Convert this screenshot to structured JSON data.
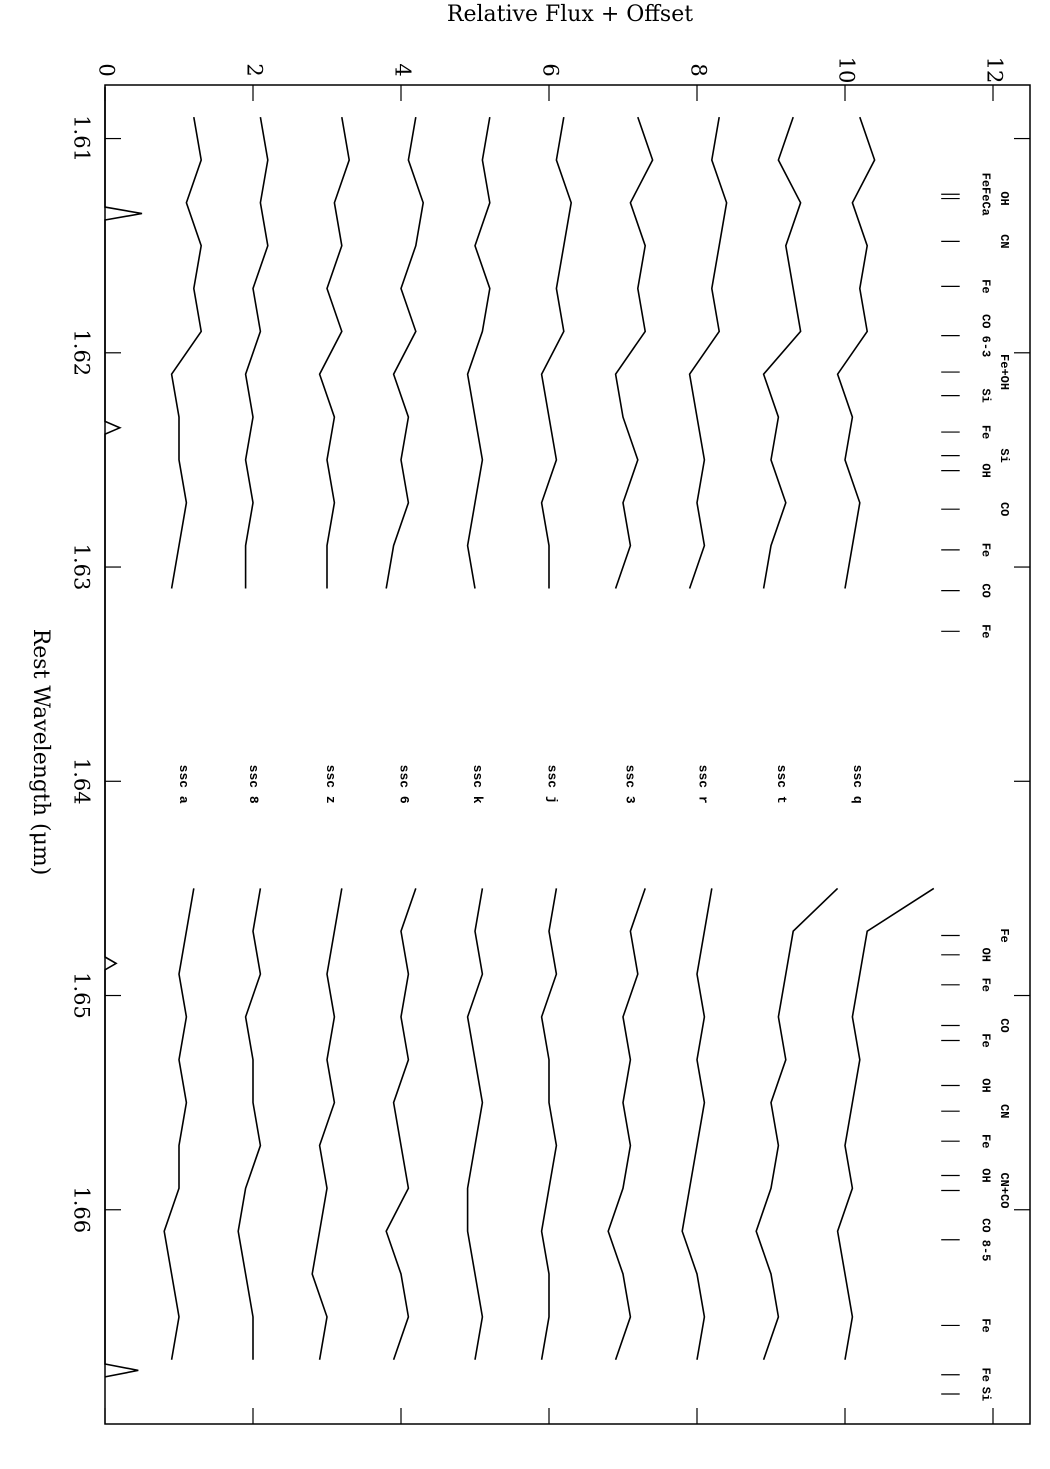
{
  "chart_data": {
    "type": "line",
    "title_top": "Relative Flux + Offset",
    "x_label": "Rest Wavelength (μm)",
    "xlim": [
      1.6075,
      1.67
    ],
    "ylim": [
      0,
      12.5
    ],
    "xticks": [
      1.61,
      1.62,
      1.63,
      1.64,
      1.65,
      1.66
    ],
    "yticks": [
      0,
      2,
      4,
      6,
      8,
      10,
      12
    ],
    "x": [
      1.609,
      1.611,
      1.613,
      1.615,
      1.617,
      1.619,
      1.621,
      1.623,
      1.625,
      1.627,
      1.629,
      1.631,
      1.638,
      1.645,
      1.647,
      1.649,
      1.651,
      1.653,
      1.655,
      1.657,
      1.659,
      1.661,
      1.663,
      1.665,
      1.667
    ],
    "color": "#000000",
    "series": [
      {
        "name": "ssc q",
        "values": [
          10.2,
          10.4,
          10.1,
          10.3,
          10.2,
          10.3,
          9.9,
          10.1,
          10.0,
          10.2,
          10.1,
          10.0,
          null,
          11.2,
          10.3,
          10.2,
          10.1,
          10.2,
          10.1,
          10.0,
          10.1,
          9.9,
          10.0,
          10.1,
          10.0
        ]
      },
      {
        "name": "ssc t",
        "values": [
          9.3,
          9.1,
          9.4,
          9.2,
          9.3,
          9.4,
          8.9,
          9.1,
          9.0,
          9.2,
          9.0,
          8.9,
          null,
          9.9,
          9.3,
          9.2,
          9.1,
          9.2,
          9.0,
          9.1,
          9.0,
          8.8,
          9.0,
          9.1,
          8.9
        ]
      },
      {
        "name": "ssc r",
        "values": [
          8.3,
          8.2,
          8.4,
          8.3,
          8.2,
          8.3,
          7.9,
          8.0,
          8.1,
          8.0,
          8.1,
          7.9,
          null,
          8.2,
          8.1,
          8.0,
          8.1,
          8.0,
          8.1,
          8.0,
          7.9,
          7.8,
          8.0,
          8.1,
          8.0
        ]
      },
      {
        "name": "ssc 3",
        "values": [
          7.2,
          7.4,
          7.1,
          7.3,
          7.2,
          7.3,
          6.9,
          7.0,
          7.2,
          7.0,
          7.1,
          6.9,
          null,
          7.3,
          7.1,
          7.2,
          7.0,
          7.1,
          7.0,
          7.1,
          7.0,
          6.8,
          7.0,
          7.1,
          6.9
        ]
      },
      {
        "name": "ssc j",
        "values": [
          6.2,
          6.1,
          6.3,
          6.2,
          6.1,
          6.2,
          5.9,
          6.0,
          6.1,
          5.9,
          6.0,
          6.0,
          null,
          6.1,
          6.0,
          6.1,
          5.9,
          6.0,
          6.0,
          6.1,
          6.0,
          5.9,
          6.0,
          6.0,
          5.9
        ]
      },
      {
        "name": "ssc k",
        "values": [
          5.2,
          5.1,
          5.2,
          5.0,
          5.2,
          5.1,
          4.9,
          5.0,
          5.1,
          5.0,
          4.9,
          5.0,
          null,
          5.1,
          5.0,
          5.1,
          4.9,
          5.0,
          5.1,
          5.0,
          4.9,
          4.9,
          5.0,
          5.1,
          5.0
        ]
      },
      {
        "name": "ssc 6",
        "values": [
          4.2,
          4.1,
          4.3,
          4.2,
          4.0,
          4.2,
          3.9,
          4.1,
          4.0,
          4.1,
          3.9,
          3.8,
          null,
          4.2,
          4.0,
          4.1,
          4.0,
          4.1,
          3.9,
          4.0,
          4.1,
          3.8,
          4.0,
          4.1,
          3.9
        ]
      },
      {
        "name": "ssc z",
        "values": [
          3.2,
          3.3,
          3.1,
          3.2,
          3.0,
          3.2,
          2.9,
          3.1,
          3.0,
          3.1,
          3.0,
          3.0,
          null,
          3.2,
          3.1,
          3.0,
          3.1,
          3.0,
          3.1,
          2.9,
          3.0,
          2.9,
          2.8,
          3.0,
          2.9
        ]
      },
      {
        "name": "ssc 8",
        "values": [
          2.1,
          2.2,
          2.1,
          2.2,
          2.0,
          2.1,
          1.9,
          2.0,
          1.9,
          2.0,
          1.9,
          1.9,
          null,
          2.1,
          2.0,
          2.1,
          1.9,
          2.0,
          2.0,
          2.1,
          1.9,
          1.8,
          1.9,
          2.0,
          2.0
        ]
      },
      {
        "name": "ssc a",
        "values": [
          1.2,
          1.3,
          1.1,
          1.3,
          1.2,
          1.3,
          0.9,
          1.0,
          1.0,
          1.1,
          1.0,
          0.9,
          null,
          1.2,
          1.1,
          1.0,
          1.1,
          1.0,
          1.1,
          1.0,
          1.0,
          0.8,
          0.9,
          1.0,
          0.9
        ]
      },
      {
        "x": [
          1.6076,
          1.6132,
          1.6135,
          1.6138,
          1.6232,
          1.6235,
          1.6238,
          1.6482,
          1.6485,
          1.6488,
          1.6672,
          1.6675,
          1.6678
        ],
        "values": [
          0,
          0,
          0.5,
          0,
          0,
          0.2,
          0,
          0,
          0.15,
          0,
          0,
          0.45,
          0
        ]
      }
    ],
    "line_ids_upper": [
      {
        "label": "OH",
        "x": 1.6128
      },
      {
        "label": "CN",
        "x": 1.6148
      },
      {
        "label": "Fe+OH",
        "x": 1.6209
      },
      {
        "label": "Si",
        "x": 1.6248
      },
      {
        "label": "CO",
        "x": 1.6273
      },
      {
        "label": "Fe",
        "x": 1.6472
      },
      {
        "label": "CO",
        "x": 1.6514
      },
      {
        "label": "CN",
        "x": 1.6554
      },
      {
        "label": "CN+CO",
        "x": 1.6591
      }
    ],
    "line_ids_lower": [
      {
        "label": "FeFeCa",
        "x": 1.6126
      },
      {
        "label": "Fe",
        "x": 1.6169
      },
      {
        "label": "CO 6-3",
        "x": 1.6192
      },
      {
        "label": "Si",
        "x": 1.622
      },
      {
        "label": "Fe",
        "x": 1.6237
      },
      {
        "label": "OH",
        "x": 1.6255
      },
      {
        "label": "Fe",
        "x": 1.6292
      },
      {
        "label": "CO",
        "x": 1.6311
      },
      {
        "label": "Fe",
        "x": 1.633
      },
      {
        "label": "OH",
        "x": 1.6481
      },
      {
        "label": "Fe",
        "x": 1.6495
      },
      {
        "label": "Fe",
        "x": 1.6521
      },
      {
        "label": "OH",
        "x": 1.6542
      },
      {
        "label": "Fe",
        "x": 1.6568
      },
      {
        "label": "OH",
        "x": 1.6584
      },
      {
        "label": "CO 8-5",
        "x": 1.6614
      },
      {
        "label": "Fe",
        "x": 1.6654
      },
      {
        "label": "Fe",
        "x": 1.6677
      },
      {
        "label": "Si",
        "x": 1.6686
      }
    ]
  }
}
